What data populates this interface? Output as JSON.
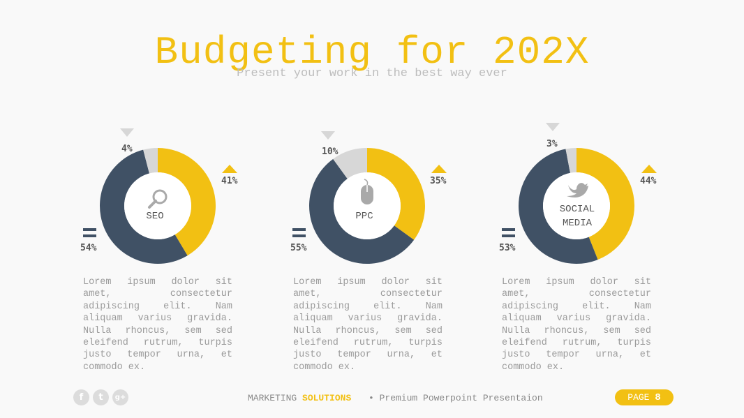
{
  "title": "Budgeting for 202X",
  "subtitle": "Present your work in the best way ever",
  "colors": {
    "yellow": "#f2c013",
    "navy": "#405165",
    "gray": "#d7d7d7"
  },
  "chart_data": [
    {
      "type": "pie",
      "center_label": [
        "SEO"
      ],
      "icon": "search-icon",
      "categories": [
        "down",
        "up",
        "equal"
      ],
      "values": [
        4,
        41,
        54
      ],
      "value_labels": [
        "4%",
        "41%",
        "54%"
      ]
    },
    {
      "type": "pie",
      "center_label": [
        "PPC"
      ],
      "icon": "mouse-icon",
      "categories": [
        "down",
        "up",
        "equal"
      ],
      "values": [
        10,
        35,
        55
      ],
      "value_labels": [
        "10%",
        "35%",
        "55%"
      ]
    },
    {
      "type": "pie",
      "center_label": [
        "SOCIAL",
        "MEDIA"
      ],
      "icon": "twitter-bird-icon",
      "categories": [
        "down",
        "up",
        "equal"
      ],
      "values": [
        3,
        44,
        53
      ],
      "value_labels": [
        "3%",
        "44%",
        "53%"
      ]
    }
  ],
  "description": "Lorem ipsum dolor sit amet, consectetur adipiscing elit. Nam aliquam varius gravida. Nulla rhoncus, sem sed eleifend rutrum, turpis justo tempor urna, et commodo ex.",
  "footer": {
    "social": [
      "f",
      "t",
      "g+"
    ],
    "brand_prefix": "MARKETING",
    "brand_accent": "SOLUTIONS",
    "tagline": "• Premium Powerpoint Presentaion",
    "page_label": "PAGE",
    "page_number": "8"
  }
}
